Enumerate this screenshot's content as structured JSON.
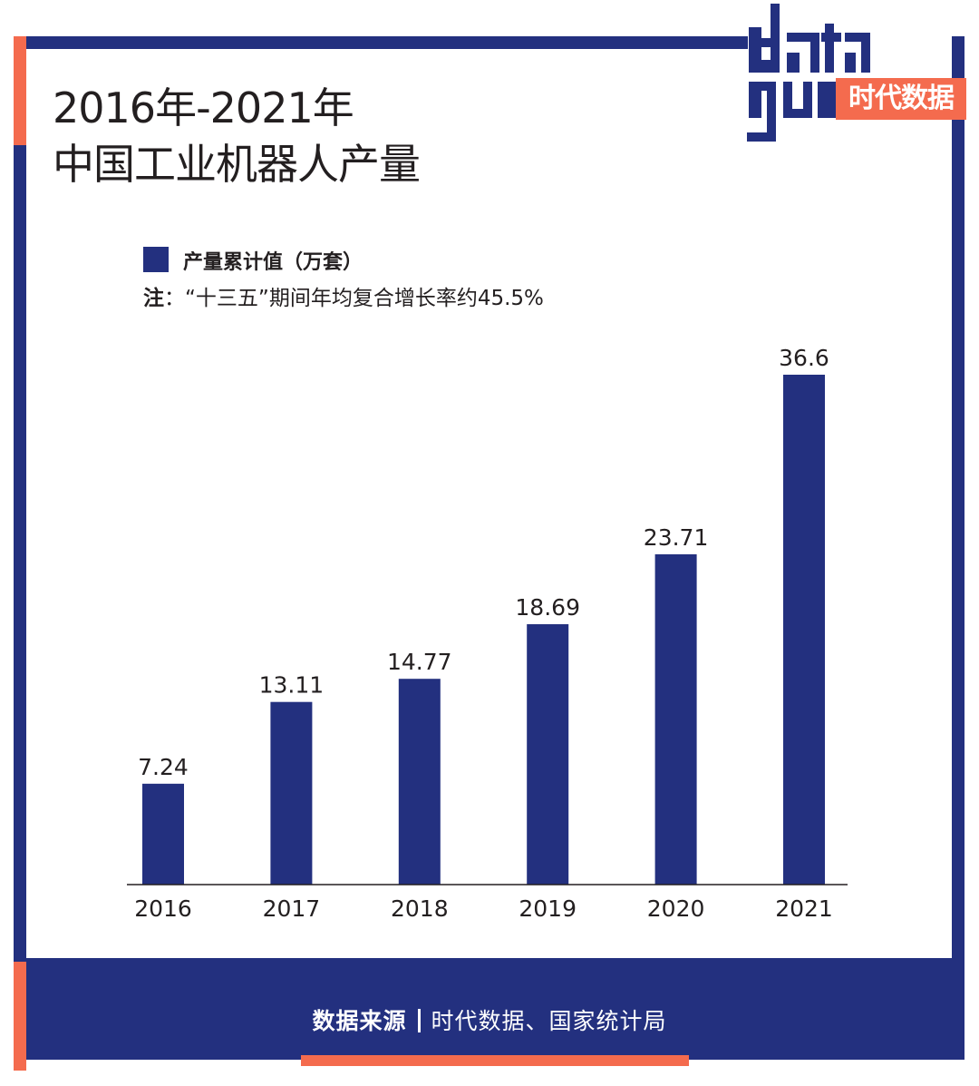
{
  "header": {
    "title_line1": "2016年-2021年",
    "title_line2": "中国工业机器人产量"
  },
  "logo": {
    "word_top": "data",
    "word_bottom": "guo",
    "badge_text": "时代数据"
  },
  "legend": {
    "label": "产量累计值（万套）"
  },
  "note": {
    "key": "注",
    "text": "：“十三五”期间年均复合增长率约45.5%"
  },
  "footer": {
    "source_label": "数据来源",
    "source_text": "时代数据、国家统计局"
  },
  "colors": {
    "bar": "#23307f",
    "frame": "#23307f",
    "accent": "#f46b4e"
  },
  "chart_data": {
    "type": "bar",
    "categories": [
      "2016",
      "2017",
      "2018",
      "2019",
      "2020",
      "2021"
    ],
    "series": [
      {
        "name": "产量累计值（万套）",
        "values": [
          7.24,
          13.11,
          14.77,
          18.69,
          23.71,
          36.6
        ]
      }
    ],
    "value_labels": [
      "7.24",
      "13.11",
      "14.77",
      "18.69",
      "23.71",
      "36.6"
    ],
    "ylim": [
      0,
      36.6
    ],
    "grid": false,
    "legend_position": "top-left"
  }
}
